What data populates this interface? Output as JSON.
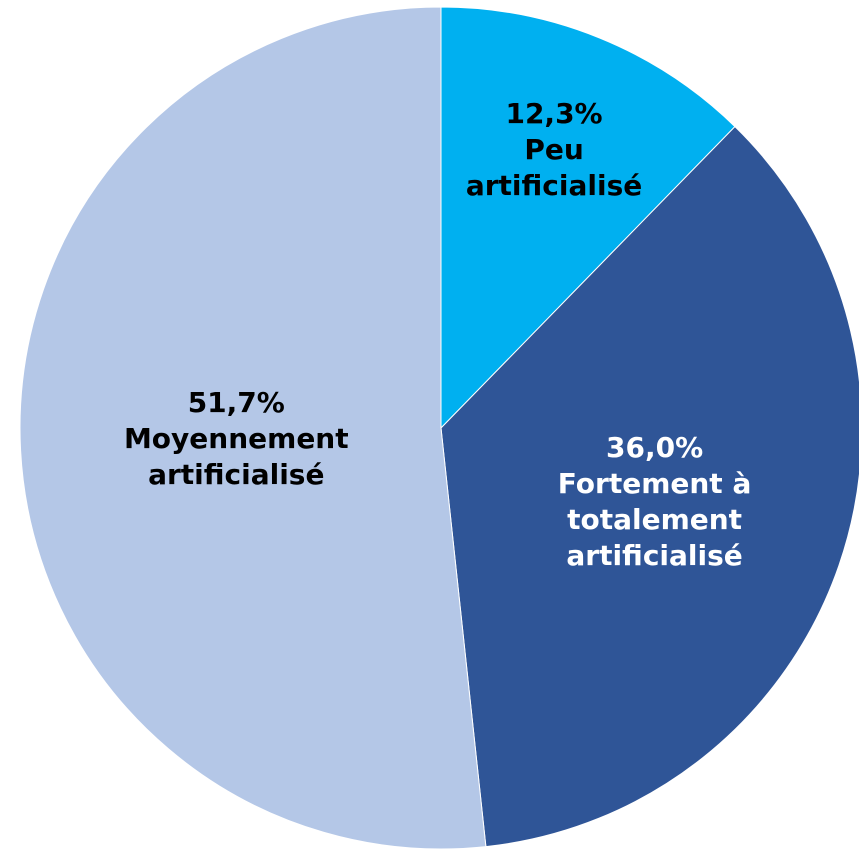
{
  "chart_data": {
    "type": "pie",
    "categories": [
      "Peu artificialisé",
      "Fortement à totalement artificialisé",
      "Moyennement artificialisé"
    ],
    "values": [
      12.3,
      36.0,
      51.7
    ],
    "value_labels": [
      "12,3%",
      "36,0%",
      "51,7%"
    ],
    "colors": [
      "#00b0f0",
      "#2f5597",
      "#b4c7e7"
    ],
    "label_colors": [
      "#000000",
      "#ffffff",
      "#000000"
    ]
  }
}
